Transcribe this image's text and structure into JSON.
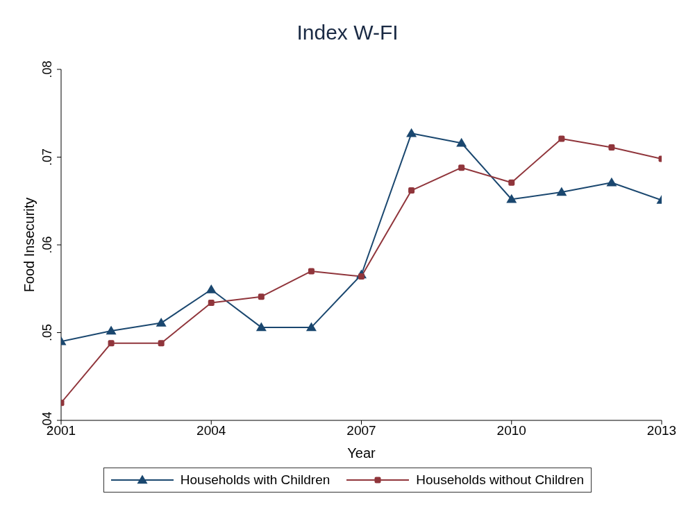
{
  "chart_data": {
    "type": "line",
    "title": "Index W-FI",
    "xlabel": "Year",
    "ylabel": "Food Insecurity",
    "x": [
      2001,
      2002,
      2003,
      2004,
      2005,
      2006,
      2007,
      2008,
      2009,
      2010,
      2011,
      2012,
      2013
    ],
    "series": [
      {
        "name": "Households with Children",
        "color": "#1a476f",
        "marker": "triangle",
        "values": [
          0.049,
          0.0502,
          0.0511,
          0.0549,
          0.0506,
          0.0506,
          0.0566,
          0.0727,
          0.0716,
          0.0652,
          0.066,
          0.0671,
          0.0651
        ]
      },
      {
        "name": "Households without Children",
        "color": "#90353b",
        "marker": "square",
        "values": [
          0.042,
          0.0488,
          0.0488,
          0.0534,
          0.0541,
          0.057,
          0.0564,
          0.0662,
          0.0688,
          0.0671,
          0.0721,
          0.0711,
          0.0698
        ]
      }
    ],
    "xlim": [
      2001,
      2013
    ],
    "xticks": [
      2001,
      2004,
      2007,
      2010,
      2013
    ],
    "ylim": [
      0.04,
      0.08
    ],
    "yticks": [
      {
        "value": 0.04,
        "label": ".04"
      },
      {
        "value": 0.05,
        "label": ".05"
      },
      {
        "value": 0.06,
        "label": ".06"
      },
      {
        "value": 0.07,
        "label": ".07"
      },
      {
        "value": 0.08,
        "label": ".08"
      }
    ],
    "grid": false,
    "legend": "bottom",
    "line_style": "solid"
  }
}
